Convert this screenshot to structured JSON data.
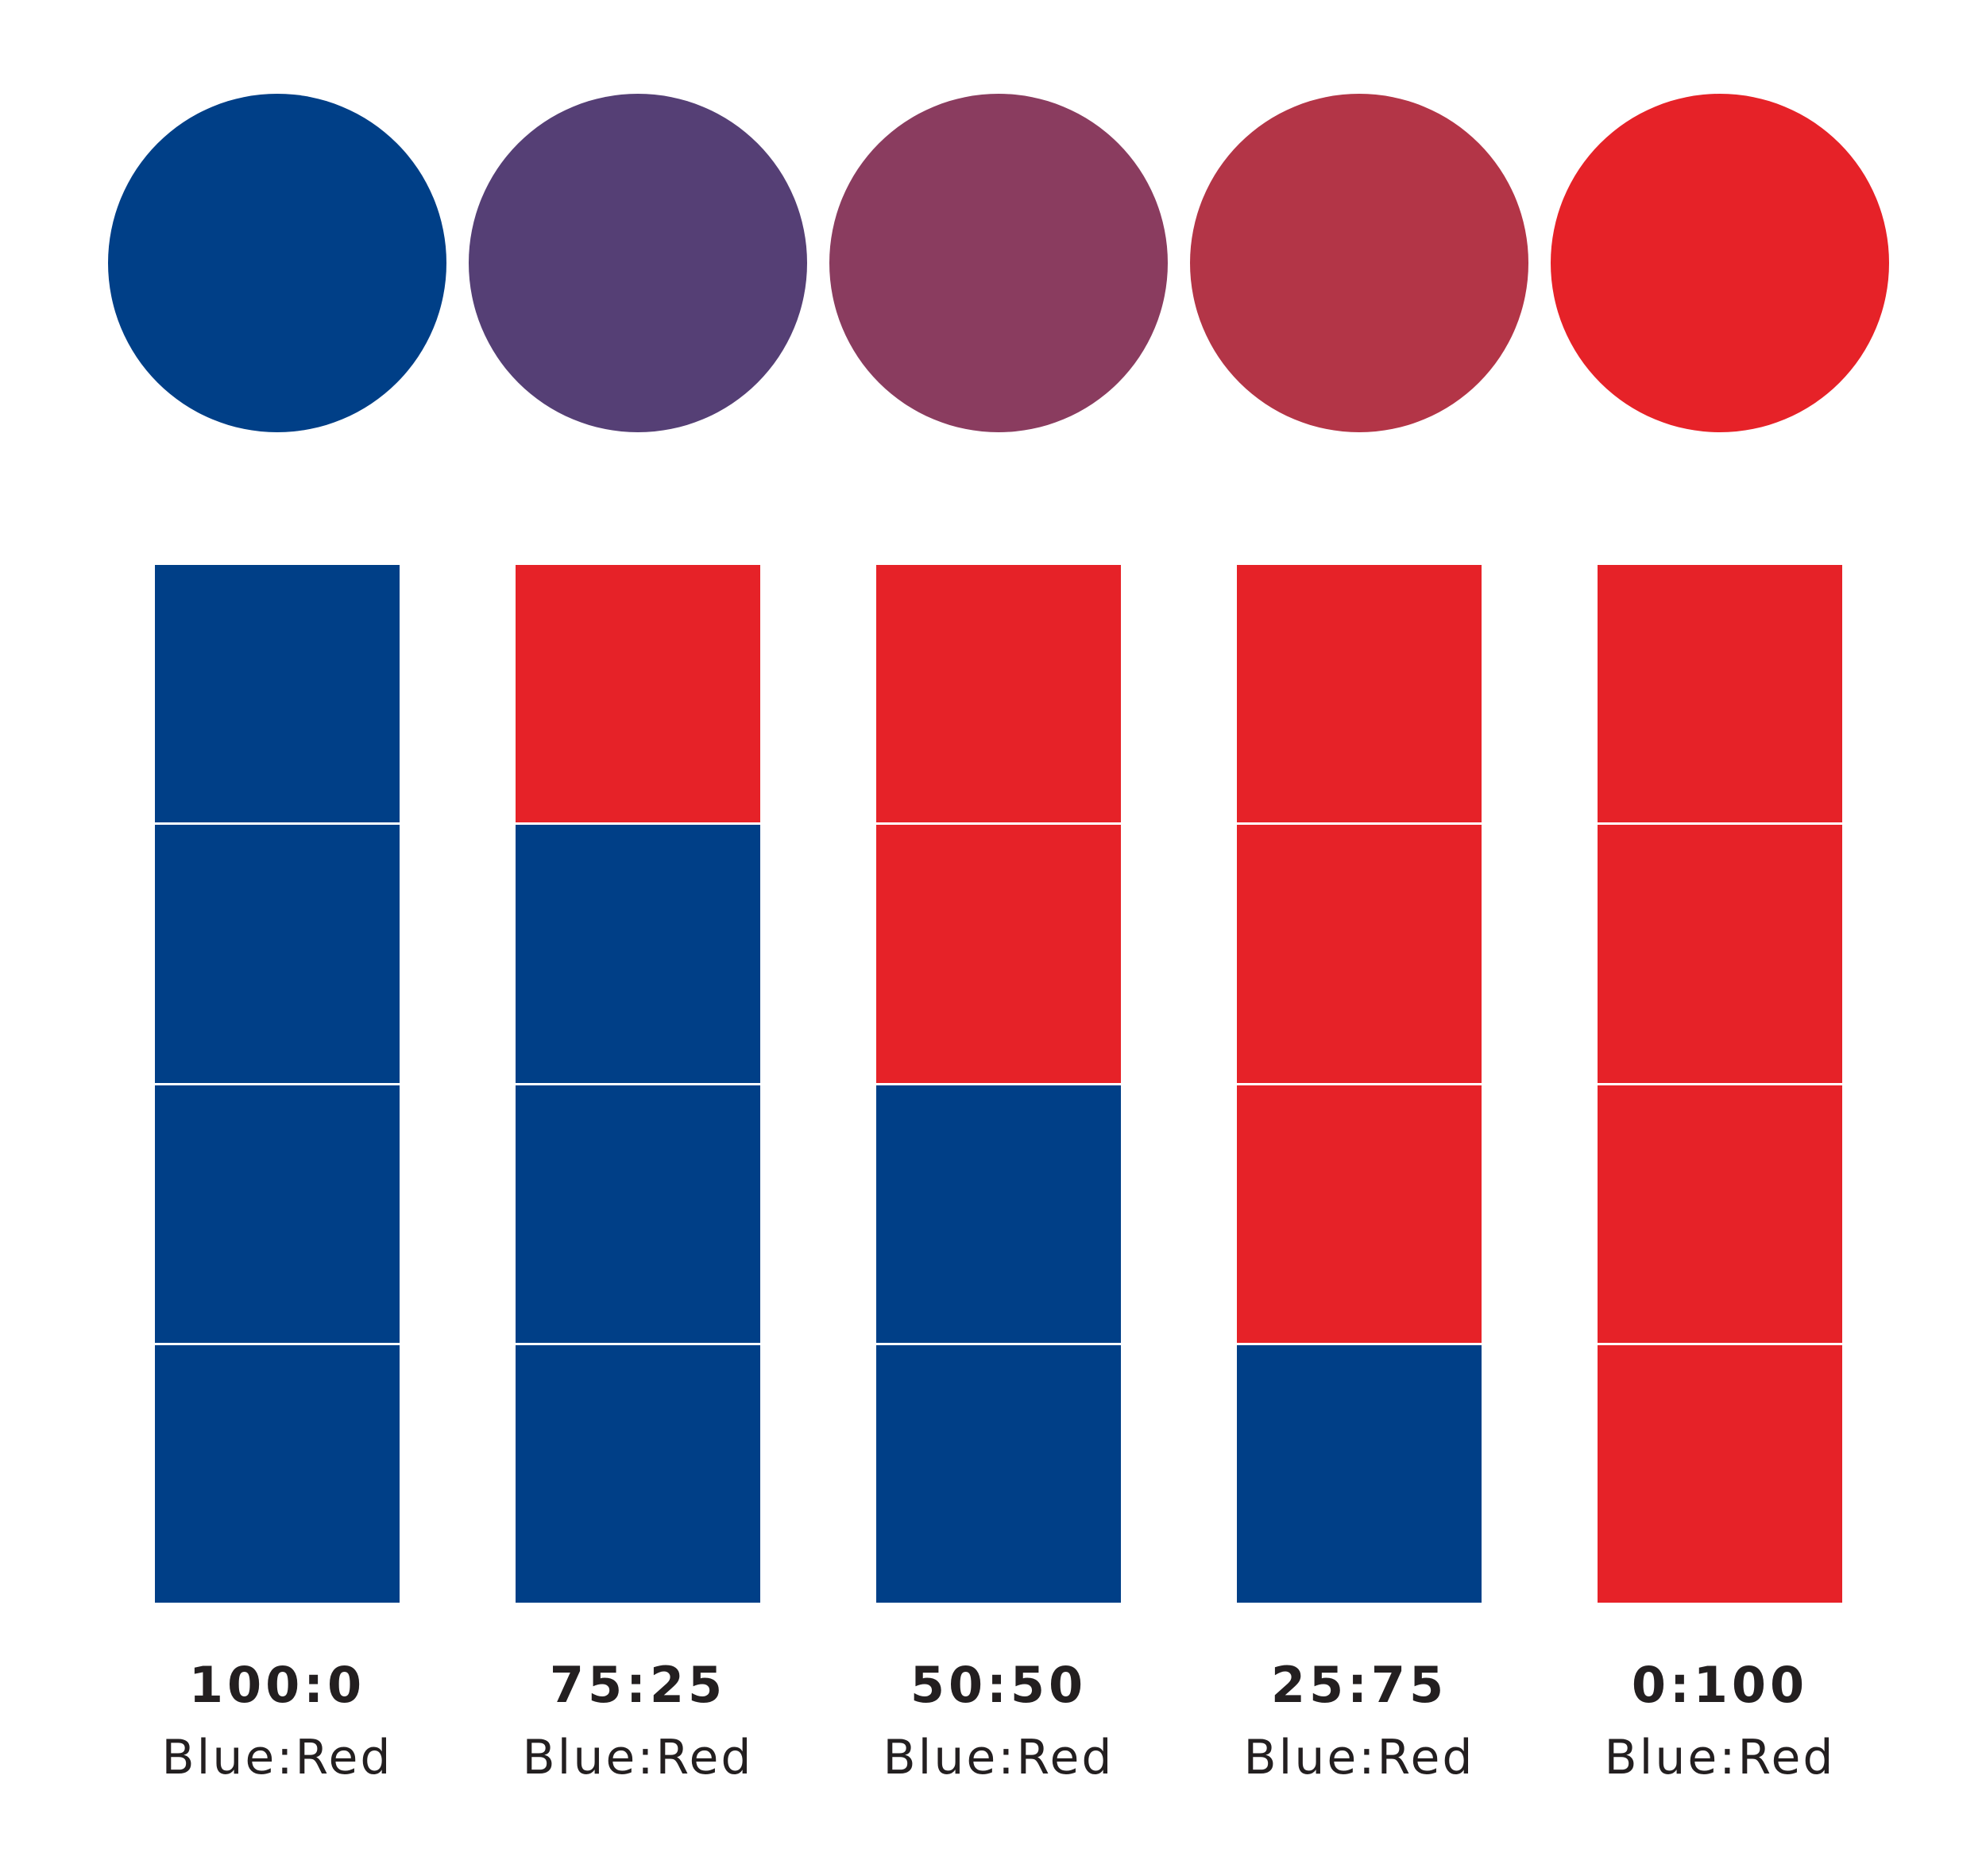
{
  "colors": {
    "blue": "#003f87",
    "red": "#e62228"
  },
  "mixes": [
    {
      "ratio": "100:0",
      "caption": "Blue:Red",
      "blue_fraction": 1.0,
      "red_fraction": 0.0,
      "mixed_color": "#003f87",
      "parts": [
        "blue",
        "blue",
        "blue",
        "blue"
      ]
    },
    {
      "ratio": "75:25",
      "caption": "Blue:Red",
      "blue_fraction": 0.75,
      "red_fraction": 0.25,
      "mixed_color": "#553f75",
      "parts": [
        "red",
        "blue",
        "blue",
        "blue"
      ]
    },
    {
      "ratio": "50:50",
      "caption": "Blue:Red",
      "blue_fraction": 0.5,
      "red_fraction": 0.5,
      "mixed_color": "#8a3c5f",
      "parts": [
        "red",
        "red",
        "blue",
        "blue"
      ]
    },
    {
      "ratio": "25:75",
      "caption": "Blue:Red",
      "blue_fraction": 0.25,
      "red_fraction": 0.75,
      "mixed_color": "#b33547",
      "parts": [
        "red",
        "red",
        "red",
        "blue"
      ]
    },
    {
      "ratio": "0:100",
      "caption": "Blue:Red",
      "blue_fraction": 0.0,
      "red_fraction": 1.0,
      "mixed_color": "#e62228",
      "parts": [
        "red",
        "red",
        "red",
        "red"
      ]
    }
  ]
}
